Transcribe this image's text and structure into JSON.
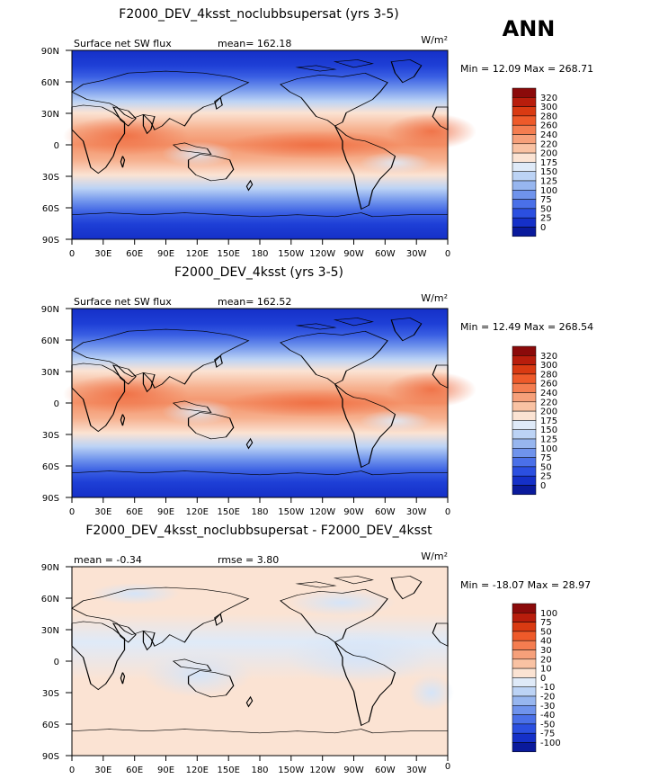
{
  "season_label": "ANN",
  "colors": {
    "ocean_dark": "#1d3fd0",
    "land_outline": "#000000"
  },
  "chart_data": [
    {
      "type": "heatmap",
      "title": "F2000_DEV_4ksst_noclubbsupersat (yrs 3-5)",
      "left_label": "Surface net SW flux",
      "stat_text": "mean= 162.18",
      "units": "W/m²",
      "min_max": "Min =   12.09 Max = 268.71",
      "x_ticks": [
        "0",
        "30E",
        "60E",
        "90E",
        "120E",
        "150E",
        "180",
        "150W",
        "120W",
        "90W",
        "60W",
        "30W",
        "0"
      ],
      "y_ticks": [
        "90N",
        "60N",
        "30N",
        "0",
        "30S",
        "60S",
        "90S"
      ],
      "colorbar_levels": [
        "320",
        "300",
        "280",
        "260",
        "240",
        "220",
        "200",
        "175",
        "150",
        "125",
        "100",
        "75",
        "50",
        "25",
        "0"
      ],
      "colorbar_colors": [
        "#8b0a0a",
        "#b81d0c",
        "#d93a12",
        "#ee5a2a",
        "#f47d50",
        "#f6a07a",
        "#f9c2a3",
        "#fbe3d3",
        "#dfeaf8",
        "#bcd3f5",
        "#97b6ef",
        "#6f93ec",
        "#4a70e8",
        "#2b4fe0",
        "#1530c8",
        "#0a1a9c"
      ]
    },
    {
      "type": "heatmap",
      "title": "F2000_DEV_4ksst (yrs 3-5)",
      "left_label": "Surface net SW flux",
      "stat_text": "mean= 162.52",
      "units": "W/m²",
      "min_max": "Min =   12.49 Max = 268.54",
      "x_ticks": [
        "0",
        "30E",
        "60E",
        "90E",
        "120E",
        "150E",
        "180",
        "150W",
        "120W",
        "90W",
        "60W",
        "30W",
        "0"
      ],
      "y_ticks": [
        "90N",
        "60N",
        "30N",
        "0",
        "30S",
        "60S",
        "90S"
      ],
      "colorbar_levels": [
        "320",
        "300",
        "280",
        "260",
        "240",
        "220",
        "200",
        "175",
        "150",
        "125",
        "100",
        "75",
        "50",
        "25",
        "0"
      ],
      "colorbar_colors": [
        "#8b0a0a",
        "#b81d0c",
        "#d93a12",
        "#ee5a2a",
        "#f47d50",
        "#f6a07a",
        "#f9c2a3",
        "#fbe3d3",
        "#dfeaf8",
        "#bcd3f5",
        "#97b6ef",
        "#6f93ec",
        "#4a70e8",
        "#2b4fe0",
        "#1530c8",
        "#0a1a9c"
      ]
    },
    {
      "type": "heatmap",
      "title": "F2000_DEV_4ksst_noclubbsupersat - F2000_DEV_4ksst",
      "left_label": "mean =   -0.34",
      "stat_text": "rmse =    3.80",
      "units": "W/m²",
      "min_max": "Min = -18.07 Max =  28.97",
      "x_ticks": [
        "0",
        "30E",
        "60E",
        "90E",
        "120E",
        "150E",
        "180",
        "150W",
        "120W",
        "90W",
        "60W",
        "30W",
        "0"
      ],
      "y_ticks": [
        "90N",
        "60N",
        "30N",
        "0",
        "30S",
        "60S",
        "90S"
      ],
      "colorbar_levels": [
        "100",
        "75",
        "50",
        "40",
        "30",
        "20",
        "10",
        "0",
        "-10",
        "-20",
        "-30",
        "-40",
        "-50",
        "-75",
        "-100"
      ],
      "colorbar_colors": [
        "#8b0a0a",
        "#b81d0c",
        "#d93a12",
        "#ee5a2a",
        "#f47d50",
        "#f6a07a",
        "#f9c2a3",
        "#fbe3d3",
        "#dfeaf8",
        "#bcd3f5",
        "#97b6ef",
        "#6f93ec",
        "#4a70e8",
        "#2b4fe0",
        "#1530c8",
        "#0a1a9c"
      ]
    }
  ]
}
